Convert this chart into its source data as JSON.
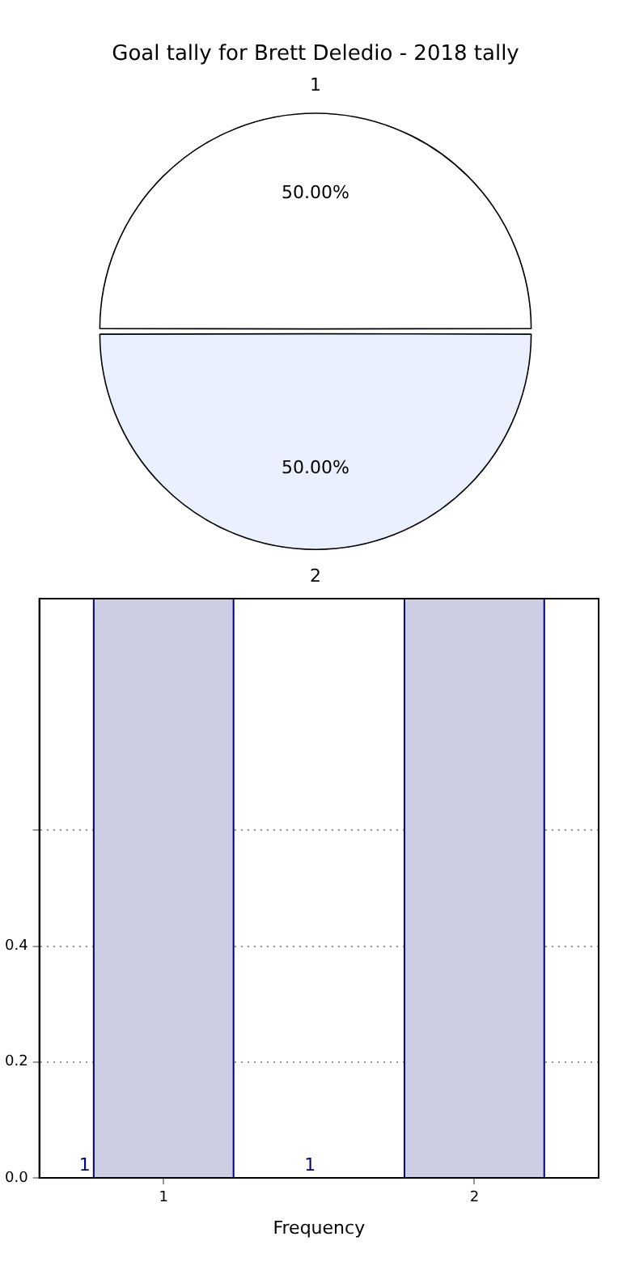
{
  "chart_data": [
    {
      "type": "pie",
      "title": "Goal tally for Brett Deledio - 2018 tally",
      "categories": [
        "1",
        "2"
      ],
      "values": [
        50,
        50
      ],
      "colors": [
        "#ffffff",
        "#eaf0fd"
      ],
      "value_labels": [
        "50.00%",
        "50.00%"
      ]
    },
    {
      "type": "histogram",
      "bins": [
        0.775,
        1.225,
        1.775,
        2.225
      ],
      "values": [
        1,
        0,
        1
      ],
      "color": "#cdcde4",
      "xlabel": "Frequency",
      "xlim": [
        0.6,
        2.4
      ],
      "xticks": [
        1,
        2
      ],
      "ylim": [
        0,
        1
      ],
      "yticks": [
        {
          "value": 0,
          "label": "0.0"
        },
        0.2,
        0.4,
        {
          "value": 0.6,
          "label": null
        }
      ],
      "grid": true,
      "annotations": [
        {
          "text": "1",
          "x": 0.775,
          "y": 0
        },
        {
          "text": "1",
          "x": 1.5,
          "y": 0
        }
      ]
    }
  ]
}
